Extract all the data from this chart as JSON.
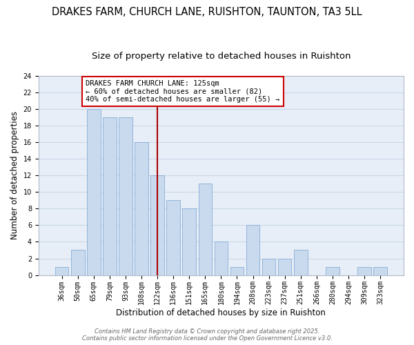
{
  "title": "DRAKES FARM, CHURCH LANE, RUISHTON, TAUNTON, TA3 5LL",
  "subtitle": "Size of property relative to detached houses in Ruishton",
  "xlabel": "Distribution of detached houses by size in Ruishton",
  "ylabel": "Number of detached properties",
  "bar_labels": [
    "36sqm",
    "50sqm",
    "65sqm",
    "79sqm",
    "93sqm",
    "108sqm",
    "122sqm",
    "136sqm",
    "151sqm",
    "165sqm",
    "180sqm",
    "194sqm",
    "208sqm",
    "223sqm",
    "237sqm",
    "251sqm",
    "266sqm",
    "280sqm",
    "294sqm",
    "309sqm",
    "323sqm"
  ],
  "bar_values": [
    1,
    3,
    20,
    19,
    19,
    16,
    12,
    9,
    8,
    11,
    4,
    1,
    6,
    2,
    2,
    3,
    0,
    1,
    0,
    1,
    1
  ],
  "bar_color": "#c9d9ee",
  "bar_edge_color": "#8fb4d9",
  "grid_color": "#c8d8e8",
  "background_color": "#e8eef7",
  "vline_x_index": 6,
  "vline_color": "#aa0000",
  "annotation_title": "DRAKES FARM CHURCH LANE: 125sqm",
  "annotation_line1": "← 60% of detached houses are smaller (82)",
  "annotation_line2": "40% of semi-detached houses are larger (55) →",
  "annotation_box_color": "#ffffff",
  "annotation_box_edge": "#cc0000",
  "ylim": [
    0,
    24
  ],
  "yticks": [
    0,
    2,
    4,
    6,
    8,
    10,
    12,
    14,
    16,
    18,
    20,
    22,
    24
  ],
  "footer_line1": "Contains HM Land Registry data © Crown copyright and database right 2025.",
  "footer_line2": "Contains public sector information licensed under the Open Government Licence v3.0.",
  "title_fontsize": 10.5,
  "subtitle_fontsize": 9.5,
  "axis_label_fontsize": 8.5,
  "tick_fontsize": 7,
  "annotation_fontsize": 7.5,
  "footer_fontsize": 6
}
